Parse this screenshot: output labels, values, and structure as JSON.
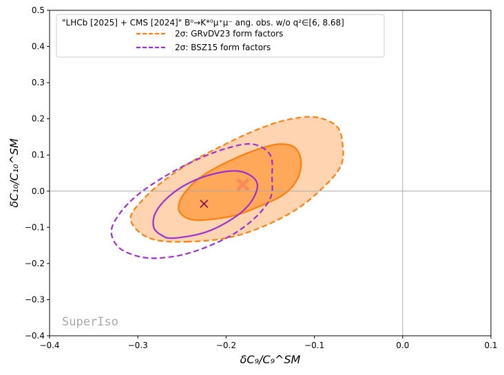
{
  "chart_data": {
    "type": "contour",
    "xlabel": "δC₉/C₉^SM",
    "ylabel": "δC₁₀/C₁₀^SM",
    "xlim": [
      -0.4,
      0.1
    ],
    "ylim": [
      -0.4,
      0.5
    ],
    "xticks": [
      "−0.4",
      "−0.3",
      "−0.2",
      "−0.1",
      "0.0",
      "0.1"
    ],
    "yticks": [
      "−0.4",
      "−0.3",
      "−0.2",
      "−0.1",
      "0.0",
      "0.1",
      "0.2",
      "0.3",
      "0.4",
      "0.5"
    ],
    "reference_lines": {
      "x": 0.0,
      "y": 0.0
    },
    "legend": {
      "title": "\"LHCb [2025] + CMS [2024]\" B⁰→K*⁰μ⁺μ⁻ ang. obs. w/o q²∈[6, 8.68]",
      "placement": "top-left",
      "entries": [
        {
          "label": "2σ: GRvDV23 form factors",
          "color": "#ff7f0e",
          "style": "dashed"
        },
        {
          "label": "2σ: BSZ15 form factors",
          "color": "#9b30d0",
          "style": "dashed"
        }
      ]
    },
    "watermark": "SuperIso",
    "series": [
      {
        "name": "GRvDV23 form factors",
        "best_fit": {
          "x": -0.181,
          "y": 0.018,
          "marker": "X",
          "color": "#fa8a5a"
        },
        "regions": [
          {
            "level": "2σ",
            "fill": "#ffd4b0",
            "stroke": "#ff7f0e",
            "dash": true,
            "points": [
              [
                -0.245,
                -0.14
              ],
              [
                -0.2,
                -0.13
              ],
              [
                -0.16,
                -0.1
              ],
              [
                -0.12,
                -0.05
              ],
              [
                -0.09,
                0.01
              ],
              [
                -0.07,
                0.07
              ],
              [
                -0.068,
                0.13
              ],
              [
                -0.075,
                0.18
              ],
              [
                -0.1,
                0.205
              ],
              [
                -0.135,
                0.195
              ],
              [
                -0.17,
                0.165
              ],
              [
                -0.205,
                0.125
              ],
              [
                -0.24,
                0.08
              ],
              [
                -0.27,
                0.03
              ],
              [
                -0.293,
                -0.02
              ],
              [
                -0.308,
                -0.07
              ],
              [
                -0.3,
                -0.11
              ],
              [
                -0.28,
                -0.135
              ]
            ]
          },
          {
            "level": "1σ",
            "fill": "#ffa85a",
            "stroke": "#ff7f0e",
            "dash": false,
            "points": [
              [
                -0.235,
                -0.08
              ],
              [
                -0.195,
                -0.07
              ],
              [
                -0.165,
                -0.045
              ],
              [
                -0.135,
                -0.01
              ],
              [
                -0.12,
                0.03
              ],
              [
                -0.115,
                0.08
              ],
              [
                -0.122,
                0.12
              ],
              [
                -0.14,
                0.13
              ],
              [
                -0.165,
                0.115
              ],
              [
                -0.195,
                0.085
              ],
              [
                -0.222,
                0.05
              ],
              [
                -0.24,
                0.015
              ],
              [
                -0.252,
                -0.025
              ],
              [
                -0.252,
                -0.06
              ]
            ]
          }
        ]
      },
      {
        "name": "BSZ15 form factors",
        "best_fit": {
          "x": -0.225,
          "y": -0.035,
          "marker": "x",
          "color": "#7a0050"
        },
        "regions": [
          {
            "level": "2σ",
            "fill": "none",
            "stroke": "#9b30d0",
            "dash": true,
            "points": [
              [
                -0.275,
                -0.185
              ],
              [
                -0.24,
                -0.17
              ],
              [
                -0.2,
                -0.13
              ],
              [
                -0.17,
                -0.08
              ],
              [
                -0.15,
                -0.02
              ],
              [
                -0.148,
                0.04
              ],
              [
                -0.15,
                0.1
              ],
              [
                -0.17,
                0.13
              ],
              [
                -0.2,
                0.118
              ],
              [
                -0.235,
                0.085
              ],
              [
                -0.27,
                0.04
              ],
              [
                -0.3,
                -0.01
              ],
              [
                -0.32,
                -0.06
              ],
              [
                -0.33,
                -0.11
              ],
              [
                -0.322,
                -0.155
              ],
              [
                -0.3,
                -0.18
              ]
            ]
          },
          {
            "level": "1σ",
            "fill": "none",
            "stroke": "#9b30d0",
            "dash": false,
            "points": [
              [
                -0.26,
                -0.13
              ],
              [
                -0.225,
                -0.115
              ],
              [
                -0.195,
                -0.08
              ],
              [
                -0.175,
                -0.04
              ],
              [
                -0.165,
                0.005
              ],
              [
                -0.168,
                0.035
              ],
              [
                -0.185,
                0.055
              ],
              [
                -0.21,
                0.05
              ],
              [
                -0.24,
                0.025
              ],
              [
                -0.265,
                -0.015
              ],
              [
                -0.28,
                -0.06
              ],
              [
                -0.282,
                -0.1
              ],
              [
                -0.273,
                -0.122
              ]
            ]
          }
        ]
      }
    ]
  }
}
